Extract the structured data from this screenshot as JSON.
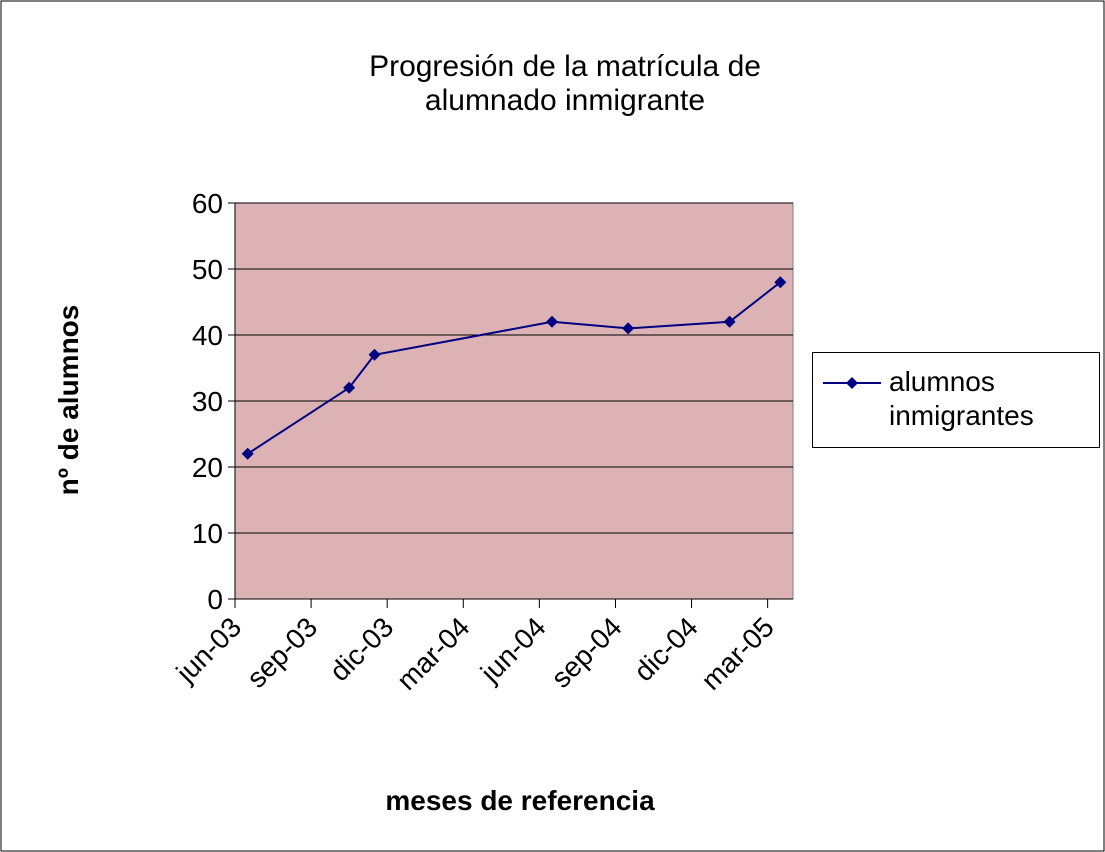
{
  "chart_data": {
    "type": "line",
    "title": "Progresión de la matrícula de alumnado inmigrante",
    "x_label": "meses de referencia",
    "y_label": "nº de alumnos",
    "x": [
      "2003-06",
      "2003-10",
      "2003-11",
      "2004-06",
      "2004-09",
      "2005-01",
      "2005-03"
    ],
    "series": [
      {
        "name": "alumnos inmigrantes",
        "color": "#000080",
        "values": [
          22,
          32,
          37,
          42,
          41,
          42,
          48
        ]
      }
    ],
    "xlim": [
      "2003-06",
      "2005-04"
    ],
    "xticks": [
      {
        "value": "2003-06",
        "label": "jun-03"
      },
      {
        "value": "2003-09",
        "label": "sep-03"
      },
      {
        "value": "2003-12",
        "label": "dic-03"
      },
      {
        "value": "2004-03",
        "label": "mar-04"
      },
      {
        "value": "2004-06",
        "label": "jun-04"
      },
      {
        "value": "2004-09",
        "label": "sep-04"
      },
      {
        "value": "2004-12",
        "label": "dic-04"
      },
      {
        "value": "2005-03",
        "label": "mar-05"
      }
    ],
    "ylim": [
      0,
      60
    ],
    "yticks": [
      0,
      10,
      20,
      30,
      40,
      50,
      60
    ],
    "grid": true,
    "legend": "right",
    "plot_background": "#dcb2b4"
  }
}
